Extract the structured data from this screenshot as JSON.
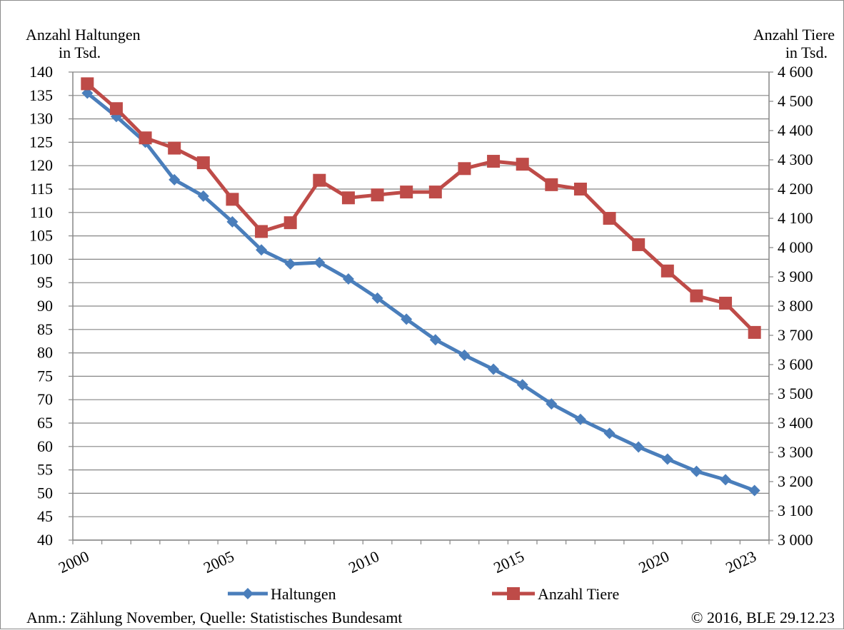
{
  "chart_data": {
    "type": "line",
    "left_axis": {
      "title_line1": "Anzahl Haltungen",
      "title_line2": "in Tsd.",
      "ylim": [
        40,
        140
      ],
      "ticks": [
        140,
        135,
        130,
        125,
        120,
        115,
        110,
        105,
        100,
        95,
        90,
        85,
        80,
        75,
        70,
        65,
        60,
        55,
        50,
        45,
        40
      ]
    },
    "right_axis": {
      "title_line1": "Anzahl Tiere",
      "title_line2": "in Tsd.",
      "ylim": [
        3000,
        4600
      ],
      "ticks": [
        "4 600",
        "4 500",
        "4 400",
        "4 300",
        "4 200",
        "4 100",
        "4 000",
        "3 900",
        "3 800",
        "3 700",
        "3 600",
        "3 500",
        "3 400",
        "3 300",
        "3 200",
        "3 100",
        "3 000"
      ]
    },
    "x": [
      2000,
      2001,
      2002,
      2003,
      2004,
      2005,
      2006,
      2007,
      2008,
      2009,
      2010,
      2011,
      2012,
      2013,
      2014,
      2015,
      2016,
      2017,
      2018,
      2019,
      2020,
      2021,
      2022,
      2023
    ],
    "x_tick_labels": [
      "2000",
      "2005",
      "2010",
      "2015",
      "2020",
      "2023"
    ],
    "series": [
      {
        "name": "Haltungen",
        "axis": "left",
        "color": "#4a7ebb",
        "marker": "diamond",
        "values": [
          135.5,
          130.5,
          125,
          117,
          113.5,
          108,
          102,
          99,
          99.3,
          95.8,
          91.7,
          87.2,
          82.8,
          79.5,
          76.5,
          73.2,
          69.1,
          65.8,
          62.8,
          59.9,
          57.3,
          54.7,
          52.9,
          50.6
        ]
      },
      {
        "name": "Anzahl Tiere",
        "axis": "right",
        "color": "#be4b48",
        "marker": "square",
        "values": [
          4560,
          4475,
          4375,
          4340,
          4290,
          4165,
          4055,
          4085,
          4230,
          4170,
          4180,
          4190,
          4190,
          4270,
          4295,
          4285,
          4215,
          4200,
          4100,
          4010,
          3920,
          3835,
          3810,
          3710
        ]
      }
    ],
    "legend_position": "bottom",
    "grid": true
  },
  "footer": {
    "note": "Anm.: Zählung November, Quelle: Statistisches Bundesamt",
    "copyright": "© 2016, BLE 29.12.23"
  }
}
